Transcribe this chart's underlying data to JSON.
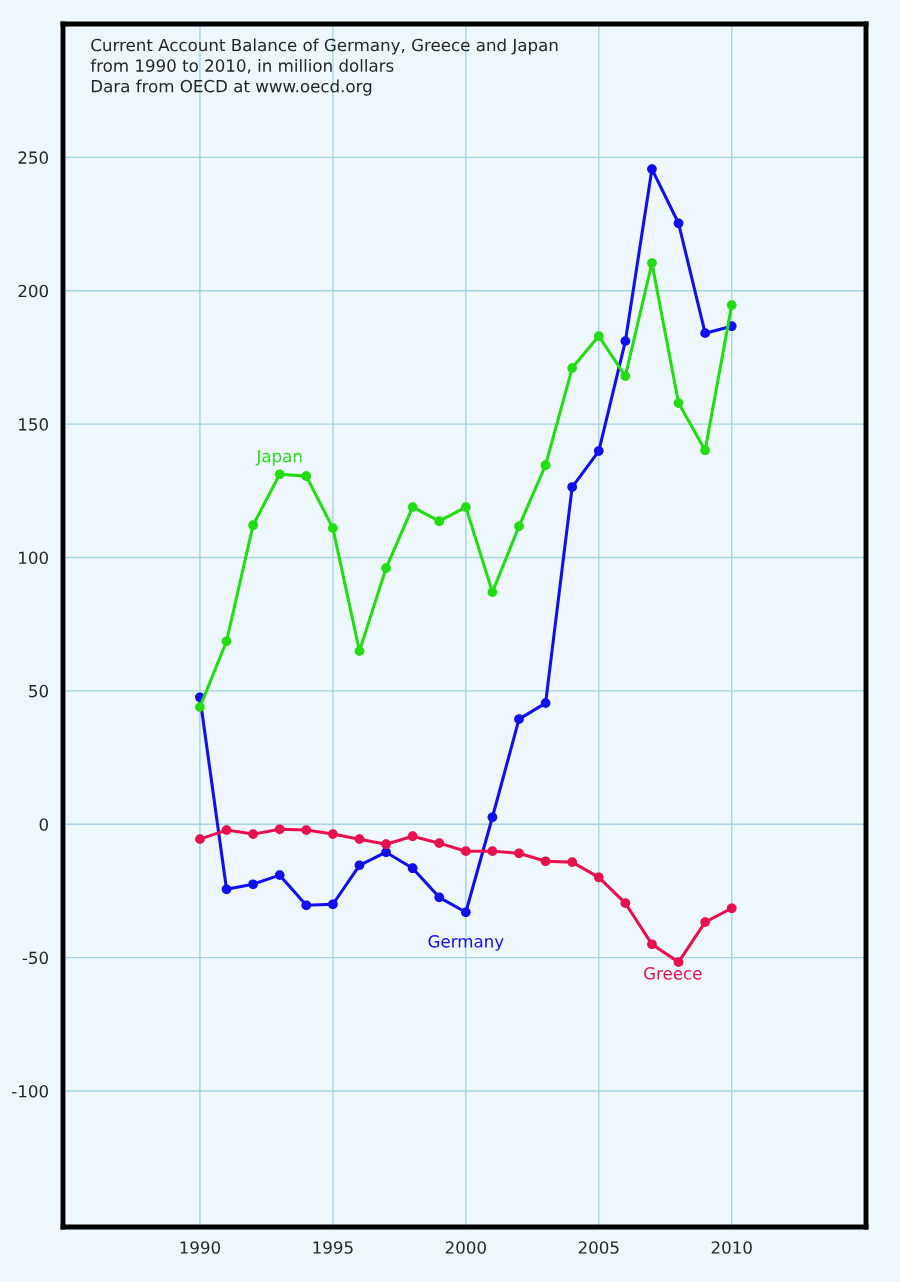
{
  "chart_data": {
    "type": "line",
    "title": "Current Account Balance of Germany, Greece and Japan\nfrom 1990 to 2010, in million dollars",
    "annotations": [
      "Dara from OECD at www.oecd.org"
    ],
    "x": [
      1990,
      1991,
      1992,
      1993,
      1994,
      1995,
      1996,
      1997,
      1998,
      1999,
      2000,
      2001,
      2002,
      2003,
      2004,
      2005,
      2006,
      2007,
      2008,
      2009,
      2010
    ],
    "series": [
      {
        "name": "Germany",
        "color": "#1010ee",
        "values": [
          47.6,
          -24.4,
          -22.5,
          -19.1,
          -30.4,
          -30,
          -15.4,
          -10.5,
          -16.5,
          -27.4,
          -33,
          2.6,
          39.4,
          45.4,
          126.4,
          139.9,
          181.1,
          245.6,
          225.3,
          184.1,
          186.7
        ]
      },
      {
        "name": "Japan",
        "color": "#22dd11",
        "values": [
          43.9,
          68.6,
          112.1,
          131.2,
          130.5,
          111,
          64.9,
          96,
          118.9,
          113.6,
          118.9,
          87,
          111.7,
          134.6,
          171,
          183,
          168,
          210.4,
          157.9,
          140.2,
          194.6
        ]
      },
      {
        "name": "Greece",
        "color": "#e8104f",
        "values": [
          -5.6,
          -2.2,
          -3.7,
          -1.9,
          -2.2,
          -3.7,
          -5.6,
          -7.5,
          -4.5,
          -7.1,
          -10.1,
          -10.1,
          -10.9,
          -13.9,
          -14.2,
          -19.9,
          -29.6,
          -45,
          -51.7,
          -36.7,
          -31.5
        ]
      }
    ],
    "xlim": [
      1984.85,
      2015.05
    ],
    "ylim": [
      -151,
      300
    ],
    "xticks": [
      1990,
      1995,
      2000,
      2005,
      2010
    ],
    "yticks": [
      -100,
      -50,
      0,
      50,
      100,
      150,
      200,
      250
    ],
    "grid": true,
    "marker": "circle",
    "line_style": "solid",
    "legend": false
  }
}
